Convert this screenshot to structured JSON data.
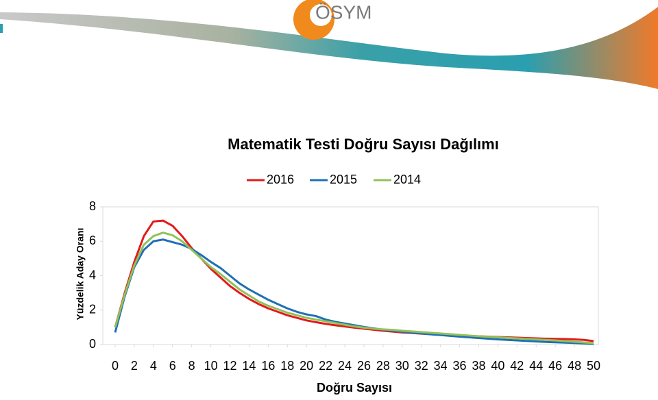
{
  "header": {
    "logo": "ÖSYM"
  },
  "chart_data": {
    "type": "line",
    "title": "Matematik Testi Doğru Sayısı Dağılımı",
    "xlabel": "Doğru Sayısı",
    "ylabel": "Yüzdelik Aday Oranı",
    "x": [
      0,
      1,
      2,
      3,
      4,
      5,
      6,
      7,
      8,
      9,
      10,
      11,
      12,
      13,
      14,
      15,
      16,
      17,
      18,
      19,
      20,
      21,
      22,
      23,
      24,
      25,
      26,
      27,
      28,
      29,
      30,
      31,
      32,
      33,
      34,
      35,
      36,
      37,
      38,
      39,
      40,
      41,
      42,
      43,
      44,
      45,
      46,
      47,
      48,
      49,
      50
    ],
    "series": [
      {
        "name": "2016",
        "color": "#e21a1a",
        "values": [
          1.0,
          3.0,
          4.8,
          6.3,
          7.15,
          7.2,
          6.9,
          6.3,
          5.6,
          5.0,
          4.4,
          3.9,
          3.4,
          3.0,
          2.65,
          2.35,
          2.1,
          1.9,
          1.7,
          1.55,
          1.4,
          1.3,
          1.2,
          1.12,
          1.05,
          0.98,
          0.92,
          0.86,
          0.8,
          0.75,
          0.7,
          0.67,
          0.63,
          0.6,
          0.57,
          0.54,
          0.52,
          0.5,
          0.48,
          0.46,
          0.44,
          0.42,
          0.4,
          0.38,
          0.36,
          0.34,
          0.33,
          0.32,
          0.3,
          0.27,
          0.2
        ]
      },
      {
        "name": "2015",
        "color": "#1f6fb5",
        "values": [
          0.7,
          2.8,
          4.5,
          5.5,
          6.0,
          6.1,
          5.95,
          5.8,
          5.55,
          5.2,
          4.8,
          4.45,
          4.0,
          3.55,
          3.2,
          2.9,
          2.6,
          2.35,
          2.1,
          1.9,
          1.75,
          1.65,
          1.45,
          1.32,
          1.22,
          1.12,
          1.02,
          0.94,
          0.86,
          0.8,
          0.74,
          0.69,
          0.64,
          0.59,
          0.55,
          0.5,
          0.46,
          0.42,
          0.38,
          0.34,
          0.3,
          0.27,
          0.24,
          0.21,
          0.18,
          0.15,
          0.13,
          0.11,
          0.09,
          0.06,
          0.03
        ]
      },
      {
        "name": "2014",
        "color": "#92c05a",
        "values": [
          1.0,
          2.9,
          4.6,
          5.8,
          6.3,
          6.5,
          6.35,
          6.0,
          5.5,
          5.0,
          4.5,
          4.1,
          3.65,
          3.2,
          2.85,
          2.5,
          2.25,
          2.05,
          1.85,
          1.7,
          1.55,
          1.45,
          1.35,
          1.25,
          1.15,
          1.05,
          0.98,
          0.92,
          0.88,
          0.85,
          0.8,
          0.76,
          0.72,
          0.68,
          0.64,
          0.6,
          0.56,
          0.52,
          0.48,
          0.45,
          0.42,
          0.39,
          0.36,
          0.33,
          0.3,
          0.27,
          0.24,
          0.2,
          0.16,
          0.12,
          0.08
        ]
      }
    ],
    "xlim": [
      0,
      50
    ],
    "xticks": [
      0,
      2,
      4,
      6,
      8,
      10,
      12,
      14,
      16,
      18,
      20,
      22,
      24,
      26,
      28,
      30,
      32,
      34,
      36,
      38,
      40,
      42,
      44,
      46,
      48,
      50
    ],
    "ylim": [
      0,
      8
    ],
    "yticks": [
      0,
      2,
      4,
      6,
      8
    ],
    "legend": "top"
  }
}
